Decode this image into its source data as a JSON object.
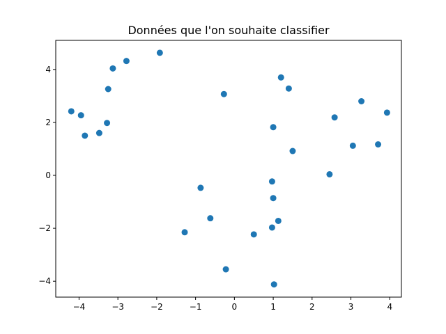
{
  "chart_data": {
    "type": "scatter",
    "title": "Données que l'on souhaite classifier",
    "xlabel": "",
    "ylabel": "",
    "xlim": [
      -4.6,
      4.3
    ],
    "ylim": [
      -4.6,
      5.1
    ],
    "xticks": [
      -4,
      -3,
      -2,
      -1,
      0,
      1,
      2,
      3,
      4
    ],
    "yticks": [
      -4,
      -2,
      0,
      2,
      4
    ],
    "grid": false,
    "marker_color": "#1f77b4",
    "points": [
      {
        "x": -4.2,
        "y": 2.42
      },
      {
        "x": -3.95,
        "y": 2.27
      },
      {
        "x": -3.85,
        "y": 1.5
      },
      {
        "x": -3.48,
        "y": 1.6
      },
      {
        "x": -3.28,
        "y": 1.98
      },
      {
        "x": -3.25,
        "y": 3.26
      },
      {
        "x": -3.13,
        "y": 4.04
      },
      {
        "x": -2.78,
        "y": 4.32
      },
      {
        "x": -1.92,
        "y": 4.63
      },
      {
        "x": -0.27,
        "y": 3.07
      },
      {
        "x": 1.2,
        "y": 3.7
      },
      {
        "x": 1.4,
        "y": 3.28
      },
      {
        "x": 1.0,
        "y": 1.82
      },
      {
        "x": 1.5,
        "y": 0.92
      },
      {
        "x": 2.45,
        "y": 0.04
      },
      {
        "x": 2.58,
        "y": 2.19
      },
      {
        "x": 3.05,
        "y": 1.12
      },
      {
        "x": 3.27,
        "y": 2.8
      },
      {
        "x": 3.7,
        "y": 1.17
      },
      {
        "x": 3.93,
        "y": 2.37
      },
      {
        "x": -0.87,
        "y": -0.47
      },
      {
        "x": -0.62,
        "y": -1.62
      },
      {
        "x": -1.28,
        "y": -2.15
      },
      {
        "x": 0.97,
        "y": -0.23
      },
      {
        "x": 1.0,
        "y": -0.86
      },
      {
        "x": 1.13,
        "y": -1.72
      },
      {
        "x": 0.97,
        "y": -1.97
      },
      {
        "x": 0.5,
        "y": -2.23
      },
      {
        "x": -0.22,
        "y": -3.55
      },
      {
        "x": 1.02,
        "y": -4.12
      }
    ]
  }
}
